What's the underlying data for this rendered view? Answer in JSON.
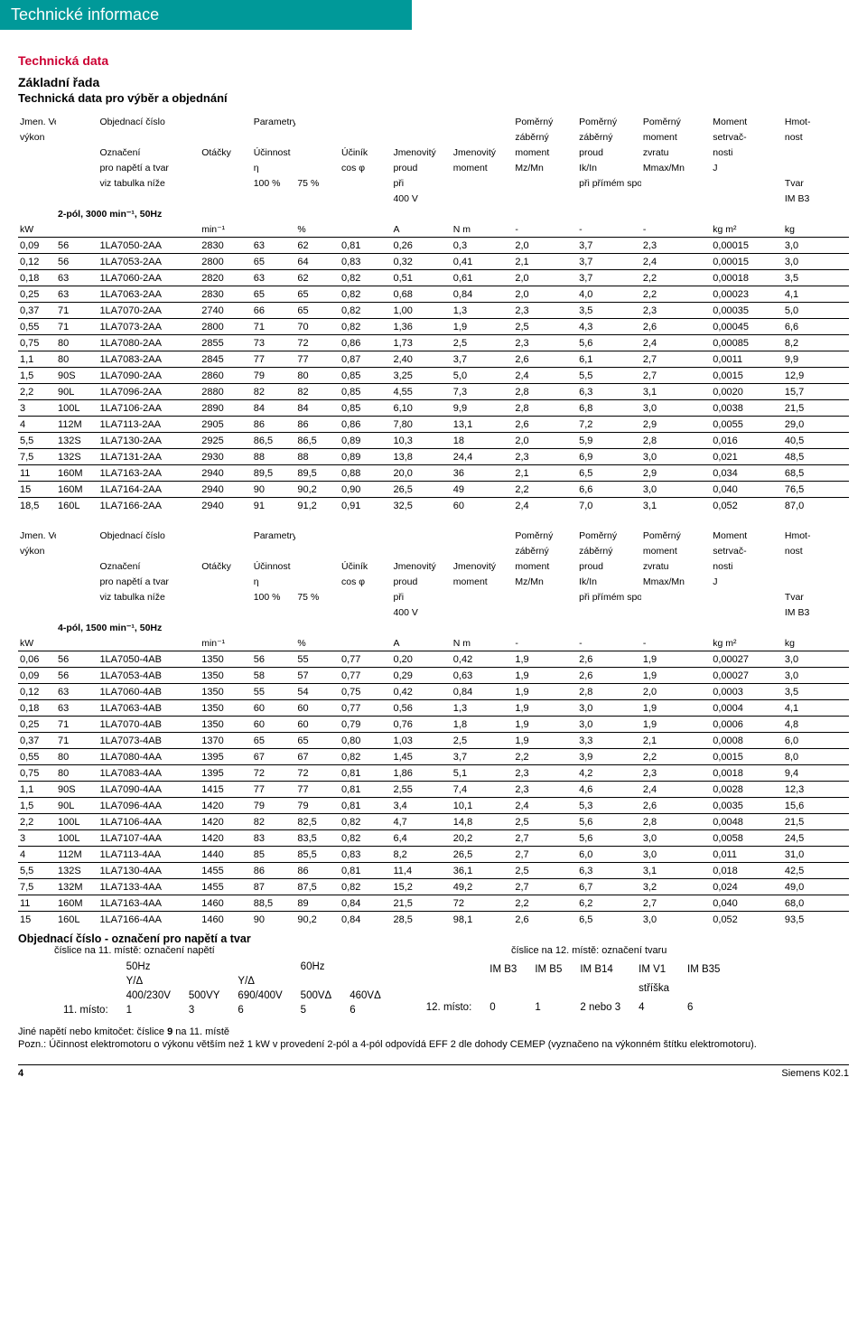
{
  "banner": "Technické informace",
  "headings": {
    "title_red": "Technická data",
    "sub1": "Základní řada",
    "sub2": "Technická data pro výběr a objednání",
    "ord_title": "Objednací číslo - označení pro napětí a tvar",
    "ord_left": "číslice na 11. místě: označení napětí",
    "ord_right": "číslice na 12. místě: označení tvaru",
    "note1": "Jiné napětí nebo kmitočet: číslice 9 na 11. místě",
    "note2": "Pozn.: Účinnost elektromotoru o výkonu větším než 1 kW v provedení 2-pól a 4-pól odpovídá EFF 2 dle dohody CEMEP (vyznačeno na výkonném štítku elektromotoru)."
  },
  "table_defs": {
    "col_widths_pct": [
      3.8,
      4.2,
      10.2,
      5.2,
      4.4,
      4.4,
      5.2,
      6.0,
      6.2,
      6.4,
      6.4,
      7.0,
      7.2,
      6.6
    ],
    "header": {
      "r1": [
        "Jmen. Velikost",
        "",
        "Objednací číslo",
        "",
        "Parametry při jmenovitém výkonu",
        "",
        "",
        "",
        "",
        "Poměrný",
        "Poměrný",
        "Poměrný",
        "Moment",
        "Hmot-"
      ],
      "r2": [
        "výkon",
        "",
        "",
        "",
        "",
        "",
        "",
        "",
        "",
        "záběrný",
        "záběrný",
        "moment",
        "setrvač-",
        "nost"
      ],
      "r3": [
        "",
        "",
        "Označení",
        "Otáčky",
        "Účinnost",
        "",
        "Účiník",
        "Jmenovitý",
        "Jmenovitý",
        "moment",
        "proud",
        "zvratu",
        "nosti",
        ""
      ],
      "r4": [
        "",
        "",
        "pro napětí a tvar",
        "",
        "η",
        "",
        "cos φ",
        "proud",
        "moment",
        "Mz/Mn",
        "Ik/In",
        "Mmax/Mn",
        "J",
        ""
      ],
      "r5": [
        "",
        "",
        "viz tabulka níže",
        "",
        "100 %",
        "75 %",
        "",
        "při",
        "",
        "",
        "při přímém spouštění",
        "",
        "",
        "Tvar"
      ],
      "r6": [
        "",
        "",
        "",
        "",
        "",
        "",
        "",
        "400 V",
        "",
        "",
        "",
        "",
        "",
        "IM B3"
      ]
    },
    "group1": "2-pól, 3000 min⁻¹, 50Hz",
    "group2": "4-pól, 1500 min⁻¹, 50Hz",
    "units": [
      "kW",
      "",
      "",
      "min⁻¹",
      "",
      "%",
      "",
      "A",
      "N m",
      "-",
      "-",
      "-",
      "kg m²",
      "kg"
    ]
  },
  "table1": [
    [
      "0,09",
      "56",
      "1LA7050-2AA",
      "2830",
      "63",
      "62",
      "0,81",
      "0,26",
      "0,3",
      "2,0",
      "3,7",
      "2,3",
      "0,00015",
      "3,0"
    ],
    [
      "0,12",
      "56",
      "1LA7053-2AA",
      "2800",
      "65",
      "64",
      "0,83",
      "0,32",
      "0,41",
      "2,1",
      "3,7",
      "2,4",
      "0,00015",
      "3,0"
    ],
    [
      "0,18",
      "63",
      "1LA7060-2AA",
      "2820",
      "63",
      "62",
      "0,82",
      "0,51",
      "0,61",
      "2,0",
      "3,7",
      "2,2",
      "0,00018",
      "3,5"
    ],
    [
      "0,25",
      "63",
      "1LA7063-2AA",
      "2830",
      "65",
      "65",
      "0,82",
      "0,68",
      "0,84",
      "2,0",
      "4,0",
      "2,2",
      "0,00023",
      "4,1"
    ],
    [
      "0,37",
      "71",
      "1LA7070-2AA",
      "2740",
      "66",
      "65",
      "0,82",
      "1,00",
      "1,3",
      "2,3",
      "3,5",
      "2,3",
      "0,00035",
      "5,0"
    ],
    [
      "0,55",
      "71",
      "1LA7073-2AA",
      "2800",
      "71",
      "70",
      "0,82",
      "1,36",
      "1,9",
      "2,5",
      "4,3",
      "2,6",
      "0,00045",
      "6,6"
    ],
    [
      "0,75",
      "80",
      "1LA7080-2AA",
      "2855",
      "73",
      "72",
      "0,86",
      "1,73",
      "2,5",
      "2,3",
      "5,6",
      "2,4",
      "0,00085",
      "8,2"
    ],
    [
      "1,1",
      "80",
      "1LA7083-2AA",
      "2845",
      "77",
      "77",
      "0,87",
      "2,40",
      "3,7",
      "2,6",
      "6,1",
      "2,7",
      "0,0011",
      "9,9"
    ],
    [
      "1,5",
      "90S",
      "1LA7090-2AA",
      "2860",
      "79",
      "80",
      "0,85",
      "3,25",
      "5,0",
      "2,4",
      "5,5",
      "2,7",
      "0,0015",
      "12,9"
    ],
    [
      "2,2",
      "90L",
      "1LA7096-2AA",
      "2880",
      "82",
      "82",
      "0,85",
      "4,55",
      "7,3",
      "2,8",
      "6,3",
      "3,1",
      "0,0020",
      "15,7"
    ],
    [
      "3",
      "100L",
      "1LA7106-2AA",
      "2890",
      "84",
      "84",
      "0,85",
      "6,10",
      "9,9",
      "2,8",
      "6,8",
      "3,0",
      "0,0038",
      "21,5"
    ],
    [
      "4",
      "112M",
      "1LA7113-2AA",
      "2905",
      "86",
      "86",
      "0,86",
      "7,80",
      "13,1",
      "2,6",
      "7,2",
      "2,9",
      "0,0055",
      "29,0"
    ],
    [
      "5,5",
      "132S",
      "1LA7130-2AA",
      "2925",
      "86,5",
      "86,5",
      "0,89",
      "10,3",
      "18",
      "2,0",
      "5,9",
      "2,8",
      "0,016",
      "40,5"
    ],
    [
      "7,5",
      "132S",
      "1LA7131-2AA",
      "2930",
      "88",
      "88",
      "0,89",
      "13,8",
      "24,4",
      "2,3",
      "6,9",
      "3,0",
      "0,021",
      "48,5"
    ],
    [
      "11",
      "160M",
      "1LA7163-2AA",
      "2940",
      "89,5",
      "89,5",
      "0,88",
      "20,0",
      "36",
      "2,1",
      "6,5",
      "2,9",
      "0,034",
      "68,5"
    ],
    [
      "15",
      "160M",
      "1LA7164-2AA",
      "2940",
      "90",
      "90,2",
      "0,90",
      "26,5",
      "49",
      "2,2",
      "6,6",
      "3,0",
      "0,040",
      "76,5"
    ],
    [
      "18,5",
      "160L",
      "1LA7166-2AA",
      "2940",
      "91",
      "91,2",
      "0,91",
      "32,5",
      "60",
      "2,4",
      "7,0",
      "3,1",
      "0,052",
      "87,0"
    ]
  ],
  "table2": [
    [
      "0,06",
      "56",
      "1LA7050-4AB",
      "1350",
      "56",
      "55",
      "0,77",
      "0,20",
      "0,42",
      "1,9",
      "2,6",
      "1,9",
      "0,00027",
      "3,0"
    ],
    [
      "0,09",
      "56",
      "1LA7053-4AB",
      "1350",
      "58",
      "57",
      "0,77",
      "0,29",
      "0,63",
      "1,9",
      "2,6",
      "1,9",
      "0,00027",
      "3,0"
    ],
    [
      "0,12",
      "63",
      "1LA7060-4AB",
      "1350",
      "55",
      "54",
      "0,75",
      "0,42",
      "0,84",
      "1,9",
      "2,8",
      "2,0",
      "0,0003",
      "3,5"
    ],
    [
      "0,18",
      "63",
      "1LA7063-4AB",
      "1350",
      "60",
      "60",
      "0,77",
      "0,56",
      "1,3",
      "1,9",
      "3,0",
      "1,9",
      "0,0004",
      "4,1"
    ],
    [
      "0,25",
      "71",
      "1LA7070-4AB",
      "1350",
      "60",
      "60",
      "0,79",
      "0,76",
      "1,8",
      "1,9",
      "3,0",
      "1,9",
      "0,0006",
      "4,8"
    ],
    [
      "0,37",
      "71",
      "1LA7073-4AB",
      "1370",
      "65",
      "65",
      "0,80",
      "1,03",
      "2,5",
      "1,9",
      "3,3",
      "2,1",
      "0,0008",
      "6,0"
    ],
    [
      "0,55",
      "80",
      "1LA7080-4AA",
      "1395",
      "67",
      "67",
      "0,82",
      "1,45",
      "3,7",
      "2,2",
      "3,9",
      "2,2",
      "0,0015",
      "8,0"
    ],
    [
      "0,75",
      "80",
      "1LA7083-4AA",
      "1395",
      "72",
      "72",
      "0,81",
      "1,86",
      "5,1",
      "2,3",
      "4,2",
      "2,3",
      "0,0018",
      "9,4"
    ],
    [
      "1,1",
      "90S",
      "1LA7090-4AA",
      "1415",
      "77",
      "77",
      "0,81",
      "2,55",
      "7,4",
      "2,3",
      "4,6",
      "2,4",
      "0,0028",
      "12,3"
    ],
    [
      "1,5",
      "90L",
      "1LA7096-4AA",
      "1420",
      "79",
      "79",
      "0,81",
      "3,4",
      "10,1",
      "2,4",
      "5,3",
      "2,6",
      "0,0035",
      "15,6"
    ],
    [
      "2,2",
      "100L",
      "1LA7106-4AA",
      "1420",
      "82",
      "82,5",
      "0,82",
      "4,7",
      "14,8",
      "2,5",
      "5,6",
      "2,8",
      "0,0048",
      "21,5"
    ],
    [
      "3",
      "100L",
      "1LA7107-4AA",
      "1420",
      "83",
      "83,5",
      "0,82",
      "6,4",
      "20,2",
      "2,7",
      "5,6",
      "3,0",
      "0,0058",
      "24,5"
    ],
    [
      "4",
      "112M",
      "1LA7113-4AA",
      "1440",
      "85",
      "85,5",
      "0,83",
      "8,2",
      "26,5",
      "2,7",
      "6,0",
      "3,0",
      "0,011",
      "31,0"
    ],
    [
      "5,5",
      "132S",
      "1LA7130-4AA",
      "1455",
      "86",
      "86",
      "0,81",
      "11,4",
      "36,1",
      "2,5",
      "6,3",
      "3,1",
      "0,018",
      "42,5"
    ],
    [
      "7,5",
      "132M",
      "1LA7133-4AA",
      "1455",
      "87",
      "87,5",
      "0,82",
      "15,2",
      "49,2",
      "2,7",
      "6,7",
      "3,2",
      "0,024",
      "49,0"
    ],
    [
      "11",
      "160M",
      "1LA7163-4AA",
      "1460",
      "88,5",
      "89",
      "0,84",
      "21,5",
      "72",
      "2,2",
      "6,2",
      "2,7",
      "0,040",
      "68,0"
    ],
    [
      "15",
      "160L",
      "1LA7166-4AA",
      "1460",
      "90",
      "90,2",
      "0,84",
      "28,5",
      "98,1",
      "2,6",
      "6,5",
      "3,0",
      "0,052",
      "93,5"
    ]
  ],
  "ordering": {
    "left": {
      "r1": [
        "",
        "50Hz",
        "",
        "",
        "60Hz",
        ""
      ],
      "r2": [
        "",
        "Y/Δ",
        "",
        "Y/Δ",
        "",
        ""
      ],
      "r3": [
        "",
        "400/230V",
        "500VY",
        "690/400V",
        "500VΔ",
        "460VΔ"
      ],
      "r4": [
        "11. místo:",
        "1",
        "3",
        "6",
        "5",
        "6"
      ]
    },
    "right": {
      "r1": [
        "",
        "IM B3",
        "IM B5",
        "IM B14",
        "IM V1",
        "IM B35"
      ],
      "r2": [
        "",
        "",
        "",
        "",
        "stříška",
        ""
      ],
      "r3": [
        "12. místo:",
        "0",
        "1",
        "2 nebo 3",
        "4",
        "6"
      ]
    }
  },
  "footer": {
    "page": "4",
    "doc": "Siemens K02.1"
  }
}
